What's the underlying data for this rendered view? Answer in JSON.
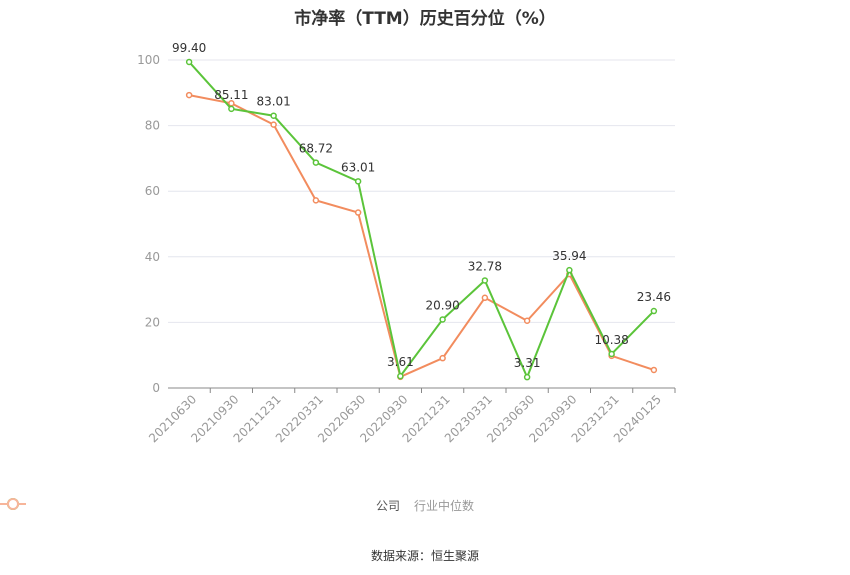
{
  "chart_data": {
    "type": "line",
    "title": "市净率（TTM）历史百分位（%）",
    "categories": [
      "20210630",
      "20210930",
      "20211231",
      "20220331",
      "20220630",
      "20220930",
      "20221231",
      "20230331",
      "20230630",
      "20230930",
      "20231231",
      "20240125"
    ],
    "ylim": [
      0,
      100
    ],
    "yticks": [
      "0",
      "20",
      "40",
      "60",
      "80",
      "100"
    ],
    "grid": true,
    "legend_position": "bottom",
    "series": [
      {
        "name": "公司",
        "color": "#5bc43a",
        "values": [
          99.4,
          85.11,
          83.01,
          68.72,
          63.01,
          3.61,
          20.9,
          32.78,
          3.31,
          35.94,
          10.38,
          23.46
        ],
        "labels": [
          "99.40",
          "85.11",
          "83.01",
          "68.72",
          "63.01",
          "3.61",
          "20.90",
          "32.78",
          "3.31",
          "35.94",
          "10.38",
          "23.46"
        ]
      },
      {
        "name": "行业中位数",
        "color": "#f28c5e",
        "values": [
          89.3,
          86.8,
          80.3,
          57.2,
          53.5,
          3.4,
          9.1,
          27.5,
          20.5,
          34.7,
          9.8,
          5.5
        ]
      }
    ]
  },
  "source": "数据来源：恒生聚源"
}
